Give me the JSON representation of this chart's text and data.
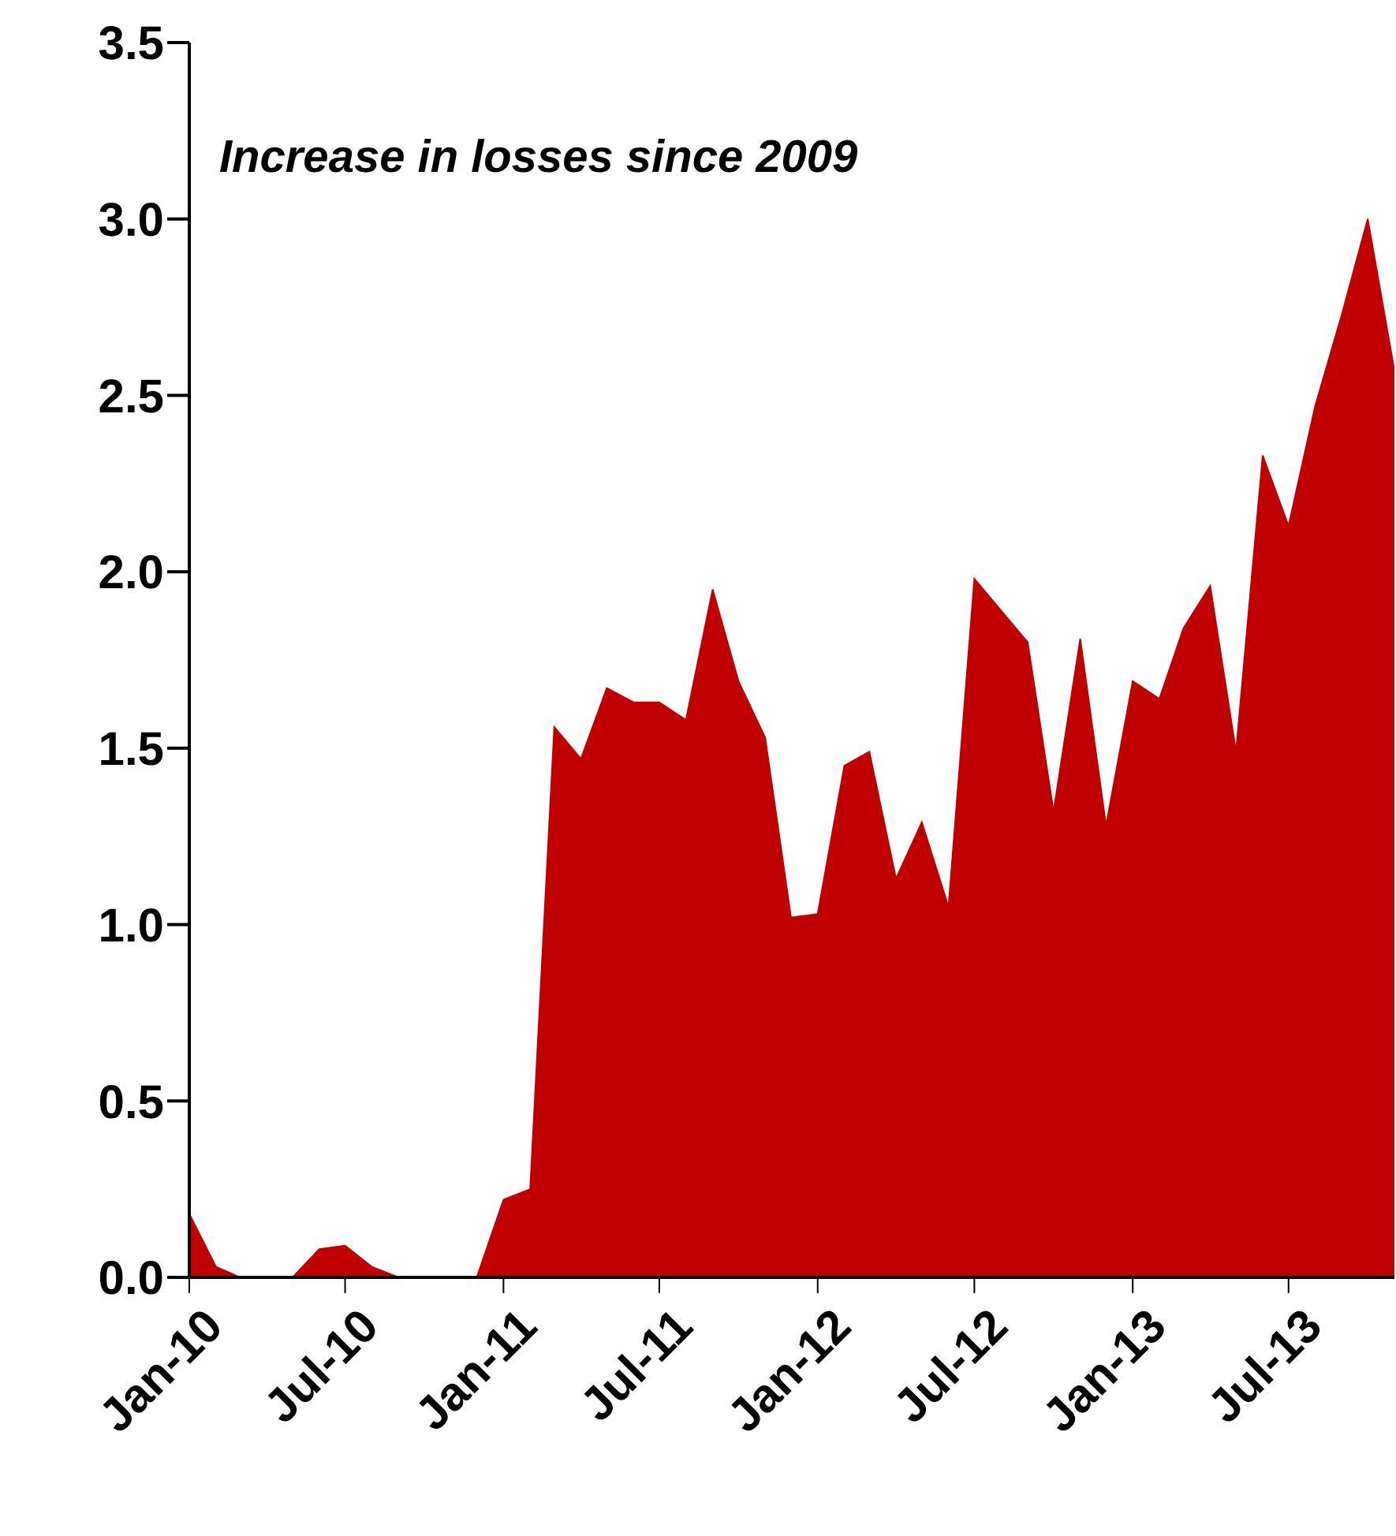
{
  "chart_data": {
    "type": "area",
    "annotations": [
      "Increase in losses since 2009"
    ],
    "x": [
      "2010-01",
      "2010-02",
      "2010-03",
      "2010-04",
      "2010-05",
      "2010-06",
      "2010-07",
      "2010-08",
      "2010-09",
      "2010-10",
      "2010-11",
      "2010-12",
      "2011-01",
      "2011-02",
      "2011-03",
      "2011-04",
      "2011-05",
      "2011-06",
      "2011-07",
      "2011-08",
      "2011-09",
      "2011-10",
      "2011-11",
      "2011-12",
      "2012-01",
      "2012-02",
      "2012-03",
      "2012-04",
      "2012-05",
      "2012-06",
      "2012-07",
      "2012-08",
      "2012-09",
      "2012-10",
      "2012-11",
      "2012-12",
      "2013-01",
      "2013-02",
      "2013-03",
      "2013-04",
      "2013-05",
      "2013-06",
      "2013-07",
      "2013-08",
      "2013-09",
      "2013-10",
      "2013-11"
    ],
    "values": [
      0.18,
      0.03,
      0,
      0,
      0,
      0.08,
      0.09,
      0.03,
      0,
      0,
      0,
      0,
      0.22,
      0.25,
      1.56,
      1.47,
      1.67,
      1.63,
      1.63,
      1.58,
      1.95,
      1.69,
      1.53,
      1.02,
      1.03,
      1.45,
      1.49,
      1.13,
      1.29,
      1.05,
      1.98,
      1.89,
      1.8,
      1.32,
      1.81,
      1.28,
      1.69,
      1.64,
      1.84,
      1.96,
      1.49,
      2.33,
      2.13,
      2.47,
      2.73,
      3.0,
      2.57
    ],
    "color": "#c00000",
    "xlim": [
      "2010-01",
      "2013-11"
    ],
    "xticks": [
      {
        "value": "2010-01",
        "label": "Jan-10"
      },
      {
        "value": "2010-07",
        "label": "Jul-10"
      },
      {
        "value": "2011-01",
        "label": "Jan-11"
      },
      {
        "value": "2011-07",
        "label": "Jul-11"
      },
      {
        "value": "2012-01",
        "label": "Jan-12"
      },
      {
        "value": "2012-07",
        "label": "Jul-12"
      },
      {
        "value": "2013-01",
        "label": "Jan-13"
      },
      {
        "value": "2013-07",
        "label": "Jul-13"
      }
    ],
    "ylim": [
      0,
      3.5
    ],
    "yticks": [
      {
        "value": 0,
        "label": "0.0"
      },
      0.5,
      {
        "value": 1,
        "label": "1.0"
      },
      1.5,
      {
        "value": 2,
        "label": "2.0"
      },
      2.5,
      {
        "value": 3,
        "label": "3.0"
      },
      3.5
    ],
    "grid": false
  }
}
